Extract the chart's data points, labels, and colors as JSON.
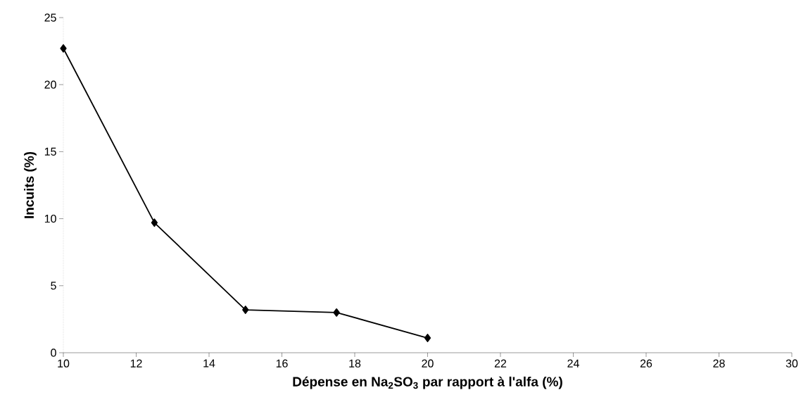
{
  "chart_data": {
    "type": "line",
    "xlabel": "Dépense en Na$_{2}$SO$_{3}$ par rapport à l'alfa (%)",
    "ylabel": "Incuits (%)",
    "x": [
      10,
      12.5,
      15,
      17.5,
      20
    ],
    "series": [
      {
        "color": "#000000",
        "values": [
          22.7,
          9.7,
          3.2,
          3.0,
          1.1
        ]
      }
    ],
    "xlim": [
      10,
      30
    ],
    "xticks": [
      10,
      12,
      14,
      16,
      18,
      20,
      22,
      24,
      26,
      28,
      30
    ],
    "ylim": [
      0,
      25
    ],
    "yticks": [
      0,
      5,
      10,
      15,
      20,
      25
    ],
    "marker": "diamond",
    "line_style": "solid",
    "grid": false
  }
}
